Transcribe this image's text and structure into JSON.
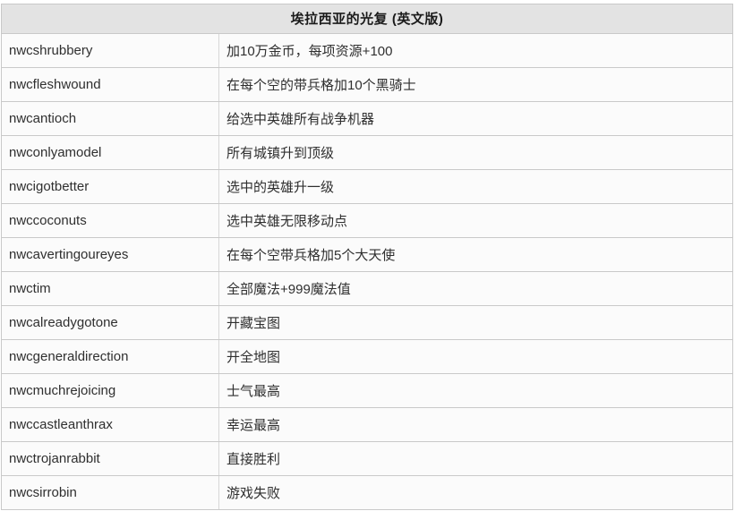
{
  "table": {
    "title": "埃拉西亚的光复 (英文版)",
    "columns": [
      "code",
      "effect"
    ],
    "rows": [
      {
        "code": "nwcshrubbery",
        "effect": "加10万金币，每项资源+100"
      },
      {
        "code": "nwcfleshwound",
        "effect": "在每个空的带兵格加10个黑骑士"
      },
      {
        "code": "nwcantioch",
        "effect": "给选中英雄所有战争机器"
      },
      {
        "code": "nwconlyamodel",
        "effect": "所有城镇升到顶级"
      },
      {
        "code": "nwcigotbetter",
        "effect": "选中的英雄升一级"
      },
      {
        "code": "nwccoconuts",
        "effect": "选中英雄无限移动点"
      },
      {
        "code": "nwcavertingoureyes",
        "effect": "在每个空带兵格加5个大天使"
      },
      {
        "code": "nwctim",
        "effect": "全部魔法+999魔法值"
      },
      {
        "code": "nwcalreadygotone",
        "effect": "开藏宝图"
      },
      {
        "code": "nwcgeneraldirection",
        "effect": "开全地图"
      },
      {
        "code": "nwcmuchrejoicing",
        "effect": "士气最高"
      },
      {
        "code": "nwccastleanthrax",
        "effect": "幸运最高"
      },
      {
        "code": "nwctrojanrabbit",
        "effect": "直接胜利"
      },
      {
        "code": "nwcsirrobin",
        "effect": "游戏失败"
      }
    ],
    "colors": {
      "header_bg": "#e3e3e3",
      "row_bg": "#fbfbfb",
      "border": "#c9c9c9",
      "divider": "#d7d7d7",
      "text": "#2f2f2f",
      "title_text": "#1a1a1a"
    }
  }
}
